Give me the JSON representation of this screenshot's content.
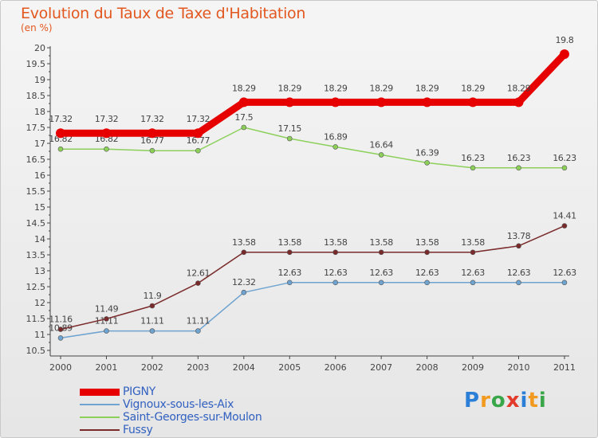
{
  "title": "Evolution du Taux de Taxe d'Habitation",
  "subtitle": "(en %)",
  "logo": {
    "text": "Proxiti",
    "letter_colors": [
      "#2c7fd6",
      "#f29a1f",
      "#3aa64a",
      "#e23b2c",
      "#2c7fd6",
      "#f29a1f",
      "#3aa64a"
    ]
  },
  "chart_data": {
    "type": "line",
    "title": "Evolution du Taux de Taxe d'Habitation",
    "subtitle": "(en %)",
    "xlabel": "",
    "ylabel": "",
    "x": [
      "2000",
      "2001",
      "2002",
      "2003",
      "2004",
      "2005",
      "2006",
      "2007",
      "2008",
      "2009",
      "2010",
      "2011"
    ],
    "ylim": [
      10.5,
      20
    ],
    "yticks": [
      "10.5",
      "11",
      "11.5",
      "12",
      "12.5",
      "13",
      "13.5",
      "14",
      "14.5",
      "15",
      "15.5",
      "16",
      "16.5",
      "17",
      "17.5",
      "18",
      "18.5",
      "19",
      "19.5",
      "20"
    ],
    "grid": false,
    "legend_position": "bottom-left",
    "series": [
      {
        "name": "PIGNY",
        "color": "#e60000",
        "values": [
          17.32,
          17.32,
          17.32,
          17.32,
          18.29,
          18.29,
          18.29,
          18.29,
          18.29,
          18.29,
          18.29,
          19.8
        ],
        "labels": [
          "17.32",
          "17.32",
          "17.32",
          "17.32",
          "18.29",
          "18.29",
          "18.29",
          "18.29",
          "18.29",
          "18.29",
          "18.29",
          "19.8"
        ]
      },
      {
        "name": "Vignoux-sous-les-Aix",
        "color": "#6fa3d0",
        "values": [
          10.89,
          11.11,
          11.11,
          11.11,
          12.32,
          12.63,
          12.63,
          12.63,
          12.63,
          12.63,
          12.63,
          12.63
        ],
        "labels": [
          "10.89",
          "11.11",
          "11.11",
          "11.11",
          "12.32",
          "12.63",
          "12.63",
          "12.63",
          "12.63",
          "12.63",
          "12.63",
          "12.63"
        ]
      },
      {
        "name": "Saint-Georges-sur-Moulon",
        "color": "#8cd05a",
        "values": [
          16.82,
          16.82,
          16.77,
          16.77,
          17.5,
          17.15,
          16.89,
          16.64,
          16.39,
          16.23,
          16.23,
          16.23
        ],
        "labels": [
          "16.82",
          "16.82",
          "16.77",
          "16.77",
          "17.5",
          "17.15",
          "16.89",
          "16.64",
          "16.39",
          "16.23",
          "16.23",
          "16.23"
        ]
      },
      {
        "name": "Fussy",
        "color": "#7a2a2a",
        "values": [
          11.16,
          11.49,
          11.9,
          12.61,
          13.58,
          13.58,
          13.58,
          13.58,
          13.58,
          13.58,
          13.78,
          14.41
        ],
        "labels": [
          "11.16",
          "11.49",
          "11.9",
          "12.61",
          "13.58",
          "13.58",
          "13.58",
          "13.58",
          "13.58",
          "13.58",
          "13.78",
          "14.41"
        ]
      }
    ]
  }
}
